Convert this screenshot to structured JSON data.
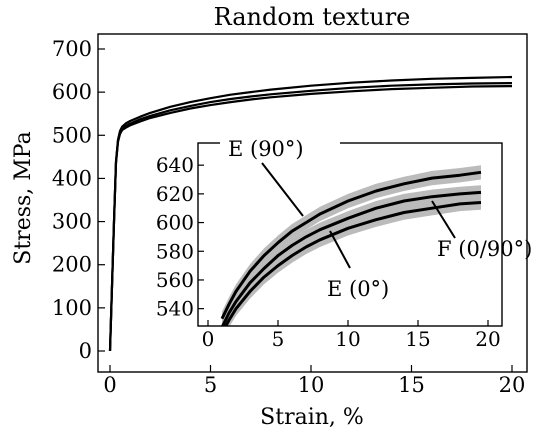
{
  "chart_data": {
    "type": "line",
    "title": "Random texture",
    "xlabel": "Strain, %",
    "ylabel": "Stress, MPa",
    "xlim": [
      0,
      20
    ],
    "ylim": [
      0,
      700
    ],
    "xticks": [
      0,
      5,
      10,
      15,
      20
    ],
    "yticks": [
      0,
      100,
      200,
      300,
      400,
      500,
      600,
      700
    ],
    "grid": false,
    "series_color": "#000000",
    "band_color": "#bbbbbb",
    "series": [
      {
        "x": [
          0,
          0.2,
          0.3,
          0.4,
          0.5,
          0.6,
          0.8,
          1,
          1.5,
          2,
          3,
          4,
          5,
          6,
          7,
          8,
          10,
          12,
          14,
          16,
          18,
          20
        ],
        "y": [
          0,
          300,
          440,
          490,
          510,
          520,
          528,
          533,
          543,
          552,
          566,
          577,
          586,
          594,
          600,
          606,
          615,
          622,
          627,
          631,
          633,
          635
        ]
      },
      {
        "x": [
          0,
          0.2,
          0.3,
          0.4,
          0.5,
          0.6,
          0.8,
          1,
          1.5,
          2,
          3,
          4,
          5,
          6,
          7,
          8,
          10,
          12,
          14,
          16,
          18,
          20
        ],
        "y": [
          0,
          300,
          438,
          487,
          506,
          515,
          522,
          527,
          537,
          545,
          558,
          568,
          577,
          584,
          590,
          595,
          603,
          610,
          615,
          618,
          620,
          621
        ]
      },
      {
        "x": [
          0,
          0.2,
          0.3,
          0.4,
          0.5,
          0.6,
          0.8,
          1,
          1.5,
          2,
          3,
          4,
          5,
          6,
          7,
          8,
          10,
          12,
          14,
          16,
          18,
          20
        ],
        "y": [
          0,
          300,
          436,
          485,
          503,
          512,
          518,
          523,
          532,
          540,
          552,
          562,
          570,
          577,
          583,
          588,
          596,
          602,
          607,
          610,
          613,
          614
        ]
      }
    ],
    "inset": {
      "xlim": [
        0,
        20
      ],
      "ylim": [
        530,
        645
      ],
      "xticks": [
        0,
        5,
        10,
        15,
        20
      ],
      "yticks": [
        540,
        560,
        580,
        600,
        620,
        640
      ],
      "series": [
        {
          "label": "E (90°)",
          "x": [
            1.0,
            1.5,
            2,
            3,
            4,
            5,
            6,
            7,
            8,
            10,
            12,
            14,
            16,
            18,
            19.5
          ],
          "y": [
            533,
            543,
            552,
            566,
            577,
            586,
            594,
            600,
            606,
            615,
            622,
            627,
            631,
            633,
            635
          ]
        },
        {
          "label": "F (0/90°)",
          "x": [
            1.0,
            1.5,
            2,
            3,
            4,
            5,
            6,
            7,
            8,
            10,
            12,
            14,
            16,
            18,
            19.5
          ],
          "y": [
            527,
            537,
            545,
            558,
            568,
            577,
            584,
            590,
            595,
            603,
            610,
            615,
            618,
            620,
            621
          ]
        },
        {
          "label": "E (0°)",
          "x": [
            1.0,
            1.5,
            2,
            3,
            4,
            5,
            6,
            7,
            8,
            10,
            12,
            14,
            16,
            18,
            19.5
          ],
          "y": [
            523,
            532,
            540,
            552,
            562,
            570,
            577,
            583,
            588,
            596,
            602,
            607,
            610,
            613,
            614
          ]
        }
      ],
      "band_offsets": [
        -5,
        5
      ]
    }
  }
}
